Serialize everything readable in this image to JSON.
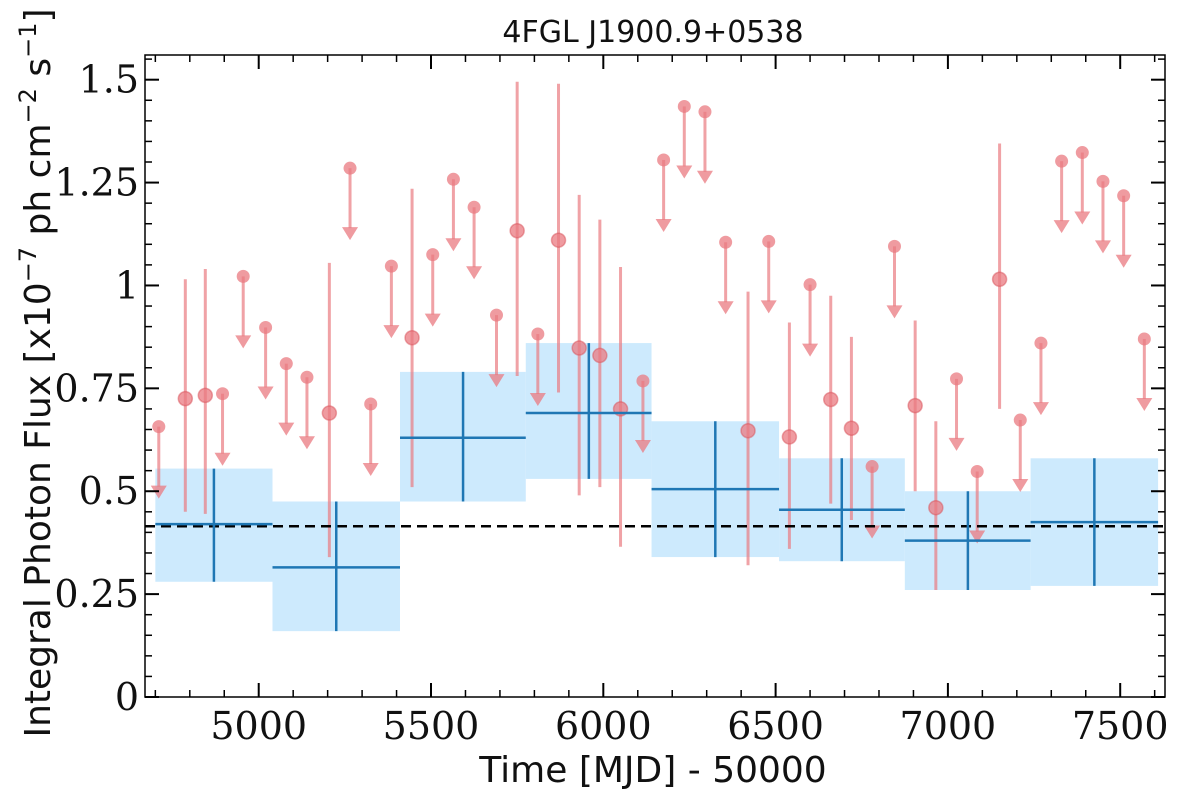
{
  "chart_data": {
    "type": "scatter",
    "title": "4FGL J1900.9+0538",
    "xlabel": "Time [MJD] - 50000",
    "ylabel": "Integral Photon Flux [x10$^{-7}$ ph cm$^{-2}$ s$^{-1}$]",
    "ylabel_parts": {
      "main": "Integral Photon Flux [x10",
      "exp1": "−7",
      "mid": " ph cm",
      "exp2": "−2",
      "mid2": " s",
      "exp3": "−1",
      "end": "]"
    },
    "xlim": [
      4670,
      7630
    ],
    "ylim": [
      0,
      1.56
    ],
    "x_ticks": [
      5000,
      5500,
      6000,
      6500,
      7000,
      7500
    ],
    "x_tick_labels": [
      "5000",
      "5500",
      "6000",
      "6500",
      "7000",
      "7500"
    ],
    "y_ticks": [
      0,
      0.25,
      0.5,
      0.75,
      1,
      1.25,
      1.5
    ],
    "y_tick_labels": [
      "0",
      "0.25",
      "0.5",
      "0.75",
      "1",
      "1.25",
      "1.5"
    ],
    "mean_flux": 0.415,
    "colors": {
      "short_points": "#e97a80",
      "long_bins_line": "#1f77b4",
      "long_bins_fill": "#cdeafd",
      "mean_line": "#000000"
    },
    "series": [
      {
        "kind": "long_bins",
        "bins": [
          {
            "x_start": 4700,
            "x_end": 5040,
            "x_center": 4870,
            "y": 0.42,
            "y_low": 0.28,
            "y_high": 0.555
          },
          {
            "x_start": 5040,
            "x_end": 5410,
            "x_center": 5225,
            "y": 0.315,
            "y_low": 0.16,
            "y_high": 0.475
          },
          {
            "x_start": 5410,
            "x_end": 5775,
            "x_center": 5593,
            "y": 0.63,
            "y_low": 0.475,
            "y_high": 0.79
          },
          {
            "x_start": 5775,
            "x_end": 6140,
            "x_center": 5958,
            "y": 0.69,
            "y_low": 0.53,
            "y_high": 0.86
          },
          {
            "x_start": 6140,
            "x_end": 6510,
            "x_center": 6325,
            "y": 0.505,
            "y_low": 0.34,
            "y_high": 0.67
          },
          {
            "x_start": 6510,
            "x_end": 6875,
            "x_center": 6692,
            "y": 0.455,
            "y_low": 0.33,
            "y_high": 0.58
          },
          {
            "x_start": 6875,
            "x_end": 7240,
            "x_center": 7058,
            "y": 0.38,
            "y_low": 0.26,
            "y_high": 0.5
          },
          {
            "x_start": 7240,
            "x_end": 7610,
            "x_center": 7425,
            "y": 0.425,
            "y_low": 0.27,
            "y_high": 0.58
          }
        ]
      },
      {
        "kind": "short_bins",
        "detections": [
          {
            "x": 4787,
            "y": 0.725,
            "y_low": 0.45,
            "y_high": 1.015
          },
          {
            "x": 4845,
            "y": 0.733,
            "y_low": 0.445,
            "y_high": 1.04
          },
          {
            "x": 5205,
            "y": 0.69,
            "y_low": 0.34,
            "y_high": 1.055
          },
          {
            "x": 5445,
            "y": 0.873,
            "y_low": 0.51,
            "y_high": 1.235
          },
          {
            "x": 5750,
            "y": 1.133,
            "y_low": 0.78,
            "y_high": 1.495
          },
          {
            "x": 5870,
            "y": 1.11,
            "y_low": 0.74,
            "y_high": 1.49
          },
          {
            "x": 5930,
            "y": 0.848,
            "y_low": 0.49,
            "y_high": 1.22
          },
          {
            "x": 5990,
            "y": 0.83,
            "y_low": 0.51,
            "y_high": 1.16
          },
          {
            "x": 6050,
            "y": 0.7,
            "y_low": 0.365,
            "y_high": 1.045
          },
          {
            "x": 6420,
            "y": 0.647,
            "y_low": 0.32,
            "y_high": 0.985
          },
          {
            "x": 6540,
            "y": 0.632,
            "y_low": 0.36,
            "y_high": 0.91
          },
          {
            "x": 6660,
            "y": 0.723,
            "y_low": 0.47,
            "y_high": 0.975
          },
          {
            "x": 6720,
            "y": 0.653,
            "y_low": 0.43,
            "y_high": 0.875
          },
          {
            "x": 6905,
            "y": 0.708,
            "y_low": 0.5,
            "y_high": 0.915
          },
          {
            "x": 6965,
            "y": 0.46,
            "y_low": 0.26,
            "y_high": 0.67
          },
          {
            "x": 7150,
            "y": 1.015,
            "y_low": 0.7,
            "y_high": 1.345
          }
        ],
        "upper_limits": [
          {
            "x": 4710,
            "y": 0.657
          },
          {
            "x": 4895,
            "y": 0.737
          },
          {
            "x": 4955,
            "y": 1.022
          },
          {
            "x": 5020,
            "y": 0.898
          },
          {
            "x": 5080,
            "y": 0.81
          },
          {
            "x": 5140,
            "y": 0.777
          },
          {
            "x": 5265,
            "y": 1.285
          },
          {
            "x": 5325,
            "y": 0.712
          },
          {
            "x": 5385,
            "y": 1.047
          },
          {
            "x": 5505,
            "y": 1.075
          },
          {
            "x": 5565,
            "y": 1.258
          },
          {
            "x": 5625,
            "y": 1.19
          },
          {
            "x": 5690,
            "y": 0.928
          },
          {
            "x": 5810,
            "y": 0.882
          },
          {
            "x": 6115,
            "y": 0.768
          },
          {
            "x": 6175,
            "y": 1.305
          },
          {
            "x": 6235,
            "y": 1.435
          },
          {
            "x": 6295,
            "y": 1.422
          },
          {
            "x": 6355,
            "y": 1.105
          },
          {
            "x": 6480,
            "y": 1.107
          },
          {
            "x": 6600,
            "y": 1.002
          },
          {
            "x": 6780,
            "y": 0.56
          },
          {
            "x": 6845,
            "y": 1.095
          },
          {
            "x": 7025,
            "y": 0.773
          },
          {
            "x": 7085,
            "y": 0.548
          },
          {
            "x": 7210,
            "y": 0.673
          },
          {
            "x": 7270,
            "y": 0.86
          },
          {
            "x": 7330,
            "y": 1.302
          },
          {
            "x": 7390,
            "y": 1.323
          },
          {
            "x": 7450,
            "y": 1.253
          },
          {
            "x": 7510,
            "y": 1.218
          },
          {
            "x": 7570,
            "y": 0.87
          }
        ]
      }
    ]
  }
}
